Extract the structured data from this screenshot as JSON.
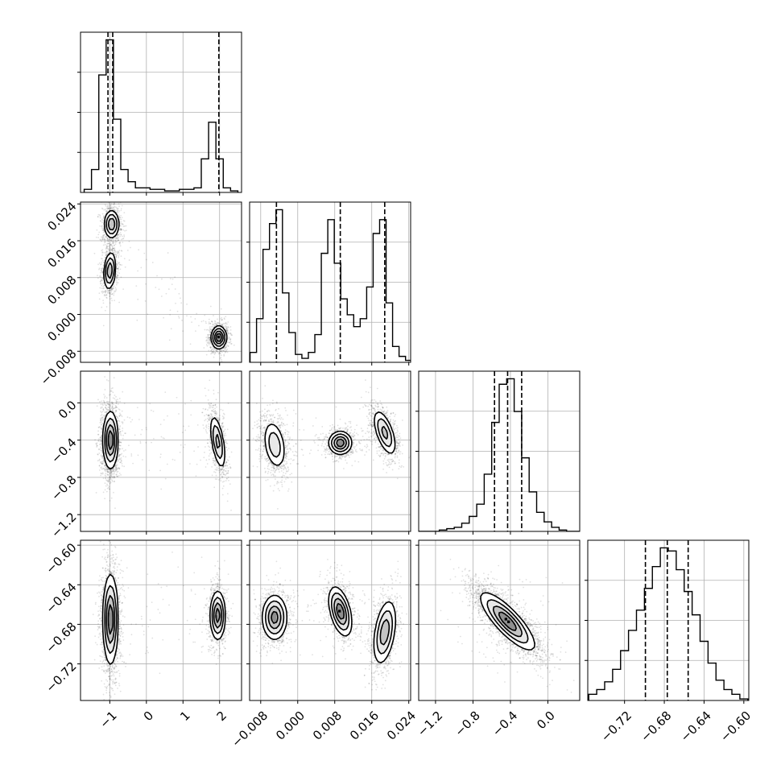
{
  "chart_data": {
    "type": "corner",
    "title": "",
    "parameters": [
      "",
      "",
      "",
      ""
    ],
    "axis_ranges": [
      [
        -1.8,
        2.6
      ],
      [
        -0.0104,
        0.0244
      ],
      [
        -1.38,
        0.34
      ],
      [
        -0.757,
        -0.595
      ]
    ],
    "ticks": [
      {
        "values": [
          -1,
          0,
          1,
          2
        ],
        "labels": [
          "−1",
          "0",
          "1",
          "2"
        ]
      },
      {
        "values": [
          -0.008,
          0.0,
          0.008,
          0.016,
          0.024
        ],
        "labels": [
          "−0.008",
          "0.000",
          "0.008",
          "0.016",
          "0.024"
        ]
      },
      {
        "values": [
          -1.2,
          -0.8,
          -0.4,
          0.0
        ],
        "labels": [
          "−1.2",
          "−0.8",
          "−0.4",
          "0.0"
        ]
      },
      {
        "values": [
          -0.72,
          -0.68,
          -0.64,
          -0.6
        ],
        "labels": [
          "−0.72",
          "−0.68",
          "−0.64",
          "−0.60"
        ]
      }
    ],
    "histograms": [
      {
        "x": [
          -1.6,
          -1.4,
          -1.2,
          -1.0,
          -0.8,
          -0.6,
          -0.4,
          -0.2,
          0.0,
          0.2,
          0.4,
          0.6,
          0.8,
          1.0,
          1.2,
          1.4,
          1.6,
          1.8,
          2.0,
          2.2,
          2.4
        ],
        "counts": [
          2,
          15,
          77,
          100,
          48,
          15,
          7,
          3,
          3,
          2,
          2,
          1,
          1,
          2,
          2,
          3,
          22,
          46,
          22,
          3,
          1
        ],
        "quantiles": [
          -1.05,
          -0.92,
          1.98
        ]
      },
      {
        "x": [
          -0.0096,
          -0.0082,
          -0.0068,
          -0.0054,
          -0.004,
          -0.0026,
          -0.0012,
          0.0002,
          0.0016,
          0.003,
          0.0044,
          0.0058,
          0.0072,
          0.0086,
          0.01,
          0.0114,
          0.0128,
          0.0142,
          0.0156,
          0.017,
          0.0184,
          0.0198,
          0.0212,
          0.0226,
          0.024
        ],
        "counts": [
          5,
          22,
          57,
          70,
          77,
          35,
          15,
          4,
          2,
          5,
          14,
          55,
          72,
          50,
          32,
          24,
          18,
          22,
          38,
          65,
          72,
          30,
          8,
          3,
          1
        ],
        "quantiles": [
          -0.0046,
          0.0092,
          0.0188
        ]
      },
      {
        "x": [
          -1.36,
          -1.28,
          -1.2,
          -1.12,
          -1.04,
          -0.96,
          -0.88,
          -0.8,
          -0.72,
          -0.64,
          -0.56,
          -0.48,
          -0.4,
          -0.32,
          -0.24,
          -0.16,
          -0.08,
          0.0,
          0.08,
          0.16,
          0.24,
          0.32
        ],
        "counts": [
          0,
          0,
          0,
          1,
          2,
          3,
          6,
          11,
          20,
          42,
          80,
          108,
          112,
          88,
          54,
          29,
          14,
          7,
          3,
          1,
          0,
          0
        ],
        "quantiles": [
          -0.57,
          -0.43,
          -0.28
        ]
      },
      {
        "x": [
          -0.752,
          -0.744,
          -0.736,
          -0.728,
          -0.72,
          -0.712,
          -0.704,
          -0.696,
          -0.688,
          -0.68,
          -0.672,
          -0.664,
          -0.656,
          -0.648,
          -0.64,
          -0.632,
          -0.624,
          -0.616,
          -0.608,
          -0.6
        ],
        "counts": [
          4,
          7,
          12,
          20,
          32,
          45,
          58,
          72,
          86,
          98,
          96,
          84,
          70,
          55,
          38,
          24,
          13,
          7,
          4,
          1
        ],
        "quantiles": [
          -0.699,
          -0.677,
          -0.656
        ]
      }
    ],
    "joint_modes": {
      "1_0": [
        {
          "x": -0.95,
          "y": 0.0196,
          "sx": 0.1,
          "sy": 0.0015,
          "rho": 0.0,
          "w": 0.32
        },
        {
          "x": -1.0,
          "y": 0.0095,
          "sx": 0.08,
          "sy": 0.002,
          "rho": 0.2,
          "w": 0.33
        },
        {
          "x": 1.98,
          "y": -0.005,
          "sx": 0.1,
          "sy": 0.0012,
          "rho": 0.0,
          "w": 0.34
        }
      ],
      "2_0": [
        {
          "x": -0.98,
          "y": -0.4,
          "sx": 0.1,
          "sy": 0.15,
          "rho": 0.0,
          "w": 0.64
        },
        {
          "x": 1.95,
          "y": -0.42,
          "sx": 0.1,
          "sy": 0.14,
          "rho": -0.55,
          "w": 0.33
        }
      ],
      "2_1": [
        {
          "x": -0.005,
          "y": -0.45,
          "sx": 0.0012,
          "sy": 0.13,
          "rho": -0.3,
          "w": 0.33
        },
        {
          "x": 0.0092,
          "y": -0.43,
          "sx": 0.0012,
          "sy": 0.06,
          "rho": 0.0,
          "w": 0.32
        },
        {
          "x": 0.0188,
          "y": -0.32,
          "sx": 0.0012,
          "sy": 0.12,
          "rho": -0.6,
          "w": 0.33
        }
      ],
      "3_0": [
        {
          "x": -0.98,
          "y": -0.675,
          "sx": 0.1,
          "sy": 0.022,
          "rho": 0.0,
          "w": 0.64
        },
        {
          "x": 1.95,
          "y": -0.671,
          "sx": 0.1,
          "sy": 0.012,
          "rho": 0.0,
          "w": 0.33
        }
      ],
      "3_1": [
        {
          "x": -0.005,
          "y": -0.673,
          "sx": 0.0013,
          "sy": 0.011,
          "rho": 0.0,
          "w": 0.33
        },
        {
          "x": 0.0092,
          "y": -0.667,
          "sx": 0.0012,
          "sy": 0.012,
          "rho": -0.45,
          "w": 0.32
        },
        {
          "x": 0.0188,
          "y": -0.688,
          "sx": 0.0012,
          "sy": 0.016,
          "rho": 0.4,
          "w": 0.33
        }
      ],
      "3_2": [
        {
          "x": -0.43,
          "y": -0.677,
          "sx": 0.14,
          "sy": 0.014,
          "rho": -0.82,
          "w": 1.0
        }
      ]
    },
    "grid": true,
    "legend": "none"
  }
}
